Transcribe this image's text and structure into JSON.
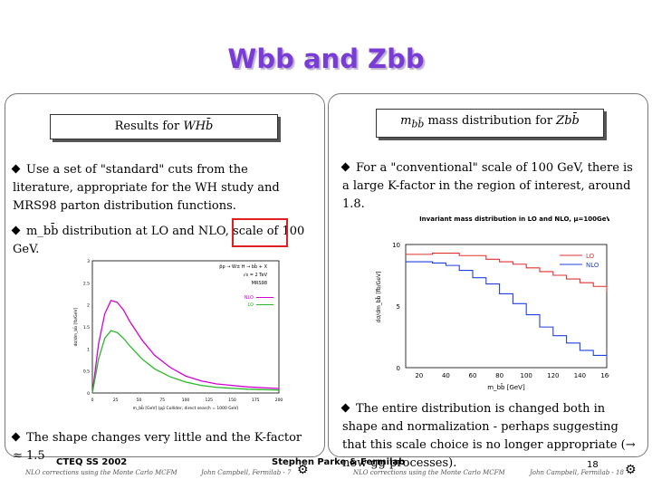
{
  "slide_title": "Wbb and Zbb",
  "left_panel": {
    "header": "Results for WHb̄",
    "bullet1": "Use a set of \"standard\" cuts from the literature, appropriate for the WH study and MRS98 parton distribution functions.",
    "bullet2": "m_bb̄ distribution at LO and NLO, scale of 100 GeV.",
    "bullet3": "The shape changes very little and the K-factor ≈ 1.5"
  },
  "right_panel": {
    "header": "m_bb̄ mass distribution for Zbb̄",
    "bullet1": "For a \"conventional\" scale of 100 GeV, there is a large K-factor in the region of interest, around 1.8.",
    "bullet2": "The entire distribution is changed both in shape and normalization - perhaps suggesting that this scale choice is no longer appropriate (→ new gg processes)."
  },
  "footer": {
    "left": "CTEQ SS 2002",
    "center": "Stephen Parke & Fermilab",
    "page": "18",
    "small_left1": "NLO corrections using the Monte Carlo MCFM",
    "small_left2": "John Campbell, Fermilab - 7",
    "small_right1": "NLO corrections using the Monte Carlo MCFM",
    "small_right2": "John Campbell, Fermilab - 18"
  },
  "chart_data": [
    {
      "type": "line",
      "legend": [
        "NLO",
        "LO"
      ],
      "annotations": [
        "p̄p → W± H → bb̄ + X",
        "√s = 2 TeV",
        "MRS98"
      ],
      "xlabel": "m_bb̄ [GeV]   (pp̄ Collider, direct search = 1000 GeV)",
      "ylabel": "dσ/dm_bb̄ [fb/GeV]",
      "xlim": [
        0,
        300
      ],
      "ylim": [
        0,
        3.5
      ],
      "xticks": [
        "0",
        "25",
        "50",
        "75",
        "100",
        "125",
        "150",
        "175",
        "200"
      ],
      "yticks": [
        "0",
        "0.5",
        "1",
        "1.5",
        "2",
        "2.5",
        "3"
      ],
      "series": [
        {
          "name": "NLO",
          "color": "#d400d4",
          "x": [
            0,
            10,
            20,
            30,
            40,
            50,
            60,
            80,
            100,
            125,
            150,
            175,
            200,
            250,
            300
          ],
          "y": [
            0,
            1.3,
            2.1,
            2.45,
            2.4,
            2.2,
            1.9,
            1.4,
            1.0,
            0.68,
            0.45,
            0.32,
            0.24,
            0.16,
            0.12
          ]
        },
        {
          "name": "LO",
          "color": "#28b828",
          "x": [
            0,
            10,
            20,
            30,
            40,
            50,
            60,
            80,
            100,
            125,
            150,
            175,
            200,
            250,
            300
          ],
          "y": [
            0,
            0.9,
            1.45,
            1.65,
            1.6,
            1.45,
            1.25,
            0.9,
            0.64,
            0.43,
            0.29,
            0.2,
            0.15,
            0.1,
            0.08
          ]
        }
      ]
    },
    {
      "type": "line",
      "title": "Invariant mass distribution in LO and NLO, μ=100GeV",
      "legend": [
        "LO",
        "NLO"
      ],
      "xlabel": "m_bb̄ [GeV]",
      "ylabel": "dσ/dm_bb̄ [fb/GeV]",
      "xlim": [
        10,
        160
      ],
      "ylim": [
        0,
        10
      ],
      "xticks": [
        "20",
        "40",
        "60",
        "80",
        "100",
        "120",
        "140",
        "160"
      ],
      "yticks": [
        "0",
        "5",
        "10"
      ],
      "series": [
        {
          "name": "LO",
          "color": "#e03030",
          "x": [
            10,
            20,
            30,
            40,
            50,
            60,
            70,
            80,
            90,
            100,
            110,
            120,
            130,
            140,
            150,
            160
          ],
          "y": [
            9.2,
            9.2,
            9.3,
            9.3,
            9.1,
            9.1,
            8.8,
            8.6,
            8.4,
            8.1,
            7.8,
            7.5,
            7.2,
            6.9,
            6.6,
            6.2
          ]
        },
        {
          "name": "NLO",
          "color": "#2040e0",
          "x": [
            10,
            20,
            30,
            40,
            50,
            60,
            70,
            80,
            90,
            100,
            110,
            120,
            130,
            140,
            150,
            160
          ],
          "y": [
            8.6,
            8.6,
            8.5,
            8.3,
            7.9,
            7.3,
            6.8,
            6.0,
            5.2,
            4.3,
            3.3,
            2.6,
            2.0,
            1.4,
            1.0,
            0.8
          ]
        }
      ]
    }
  ]
}
